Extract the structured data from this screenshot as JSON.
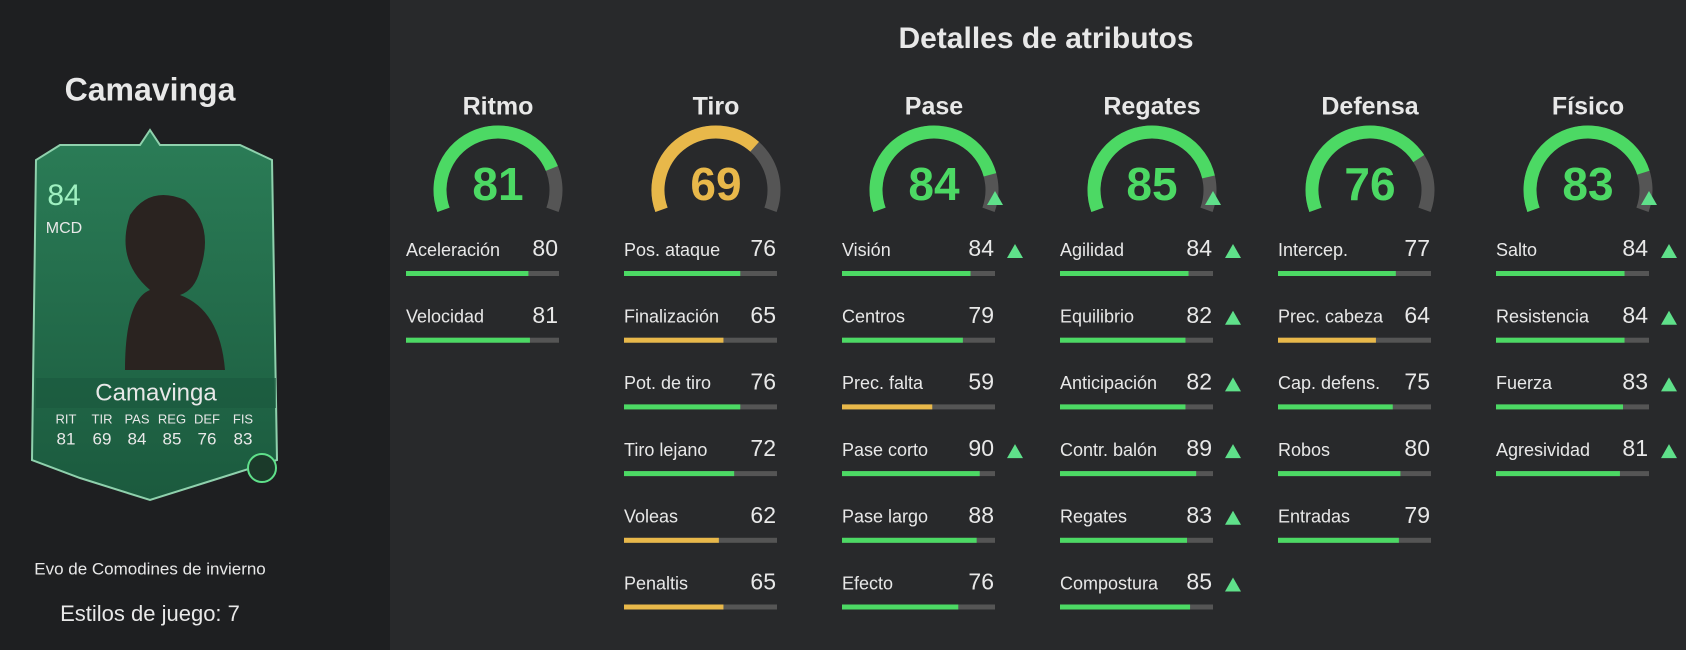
{
  "player": {
    "name": "Camavinga",
    "rating": 84,
    "position": "MCD",
    "card_name": "Camavinga",
    "card_stats": [
      {
        "label": "RIT",
        "value": 81
      },
      {
        "label": "TIR",
        "value": 69
      },
      {
        "label": "PAS",
        "value": 84
      },
      {
        "label": "REG",
        "value": 85
      },
      {
        "label": "DEF",
        "value": 76
      },
      {
        "label": "FIS",
        "value": 83
      }
    ]
  },
  "evolution": "Evo de Comodines de invierno",
  "playstyles": "Estilos de juego: 7",
  "title": "Detalles de atributos",
  "categories": [
    {
      "name": "Ritmo",
      "value": 81,
      "upgraded": false,
      "attributes": [
        {
          "name": "Aceleración",
          "value": 80,
          "upgraded": false
        },
        {
          "name": "Velocidad",
          "value": 81,
          "upgraded": false
        }
      ]
    },
    {
      "name": "Tiro",
      "value": 69,
      "upgraded": false,
      "attributes": [
        {
          "name": "Pos. ataque",
          "value": 76,
          "upgraded": false
        },
        {
          "name": "Finalización",
          "value": 65,
          "upgraded": false
        },
        {
          "name": "Pot. de tiro",
          "value": 76,
          "upgraded": false
        },
        {
          "name": "Tiro lejano",
          "value": 72,
          "upgraded": false
        },
        {
          "name": "Voleas",
          "value": 62,
          "upgraded": false
        },
        {
          "name": "Penaltis",
          "value": 65,
          "upgraded": false
        }
      ]
    },
    {
      "name": "Pase",
      "value": 84,
      "upgraded": true,
      "attributes": [
        {
          "name": "Visión",
          "value": 84,
          "upgraded": true
        },
        {
          "name": "Centros",
          "value": 79,
          "upgraded": false
        },
        {
          "name": "Prec. falta",
          "value": 59,
          "upgraded": false
        },
        {
          "name": "Pase corto",
          "value": 90,
          "upgraded": true
        },
        {
          "name": "Pase largo",
          "value": 88,
          "upgraded": false
        },
        {
          "name": "Efecto",
          "value": 76,
          "upgraded": false
        }
      ]
    },
    {
      "name": "Regates",
      "value": 85,
      "upgraded": true,
      "attributes": [
        {
          "name": "Agilidad",
          "value": 84,
          "upgraded": true
        },
        {
          "name": "Equilibrio",
          "value": 82,
          "upgraded": true
        },
        {
          "name": "Anticipación",
          "value": 82,
          "upgraded": true
        },
        {
          "name": "Contr. balón",
          "value": 89,
          "upgraded": true
        },
        {
          "name": "Regates",
          "value": 83,
          "upgraded": true
        },
        {
          "name": "Compostura",
          "value": 85,
          "upgraded": true
        }
      ]
    },
    {
      "name": "Defensa",
      "value": 76,
      "upgraded": false,
      "attributes": [
        {
          "name": "Intercep.",
          "value": 77,
          "upgraded": false
        },
        {
          "name": "Prec. cabeza",
          "value": 64,
          "upgraded": false
        },
        {
          "name": "Cap. defens.",
          "value": 75,
          "upgraded": false
        },
        {
          "name": "Robos",
          "value": 80,
          "upgraded": false
        },
        {
          "name": "Entradas",
          "value": 79,
          "upgraded": false
        }
      ]
    },
    {
      "name": "Físico",
      "value": 83,
      "upgraded": true,
      "attributes": [
        {
          "name": "Salto",
          "value": 84,
          "upgraded": true
        },
        {
          "name": "Resistencia",
          "value": 84,
          "upgraded": true
        },
        {
          "name": "Fuerza",
          "value": 83,
          "upgraded": true
        },
        {
          "name": "Agresividad",
          "value": 81,
          "upgraded": true
        }
      ]
    }
  ]
}
